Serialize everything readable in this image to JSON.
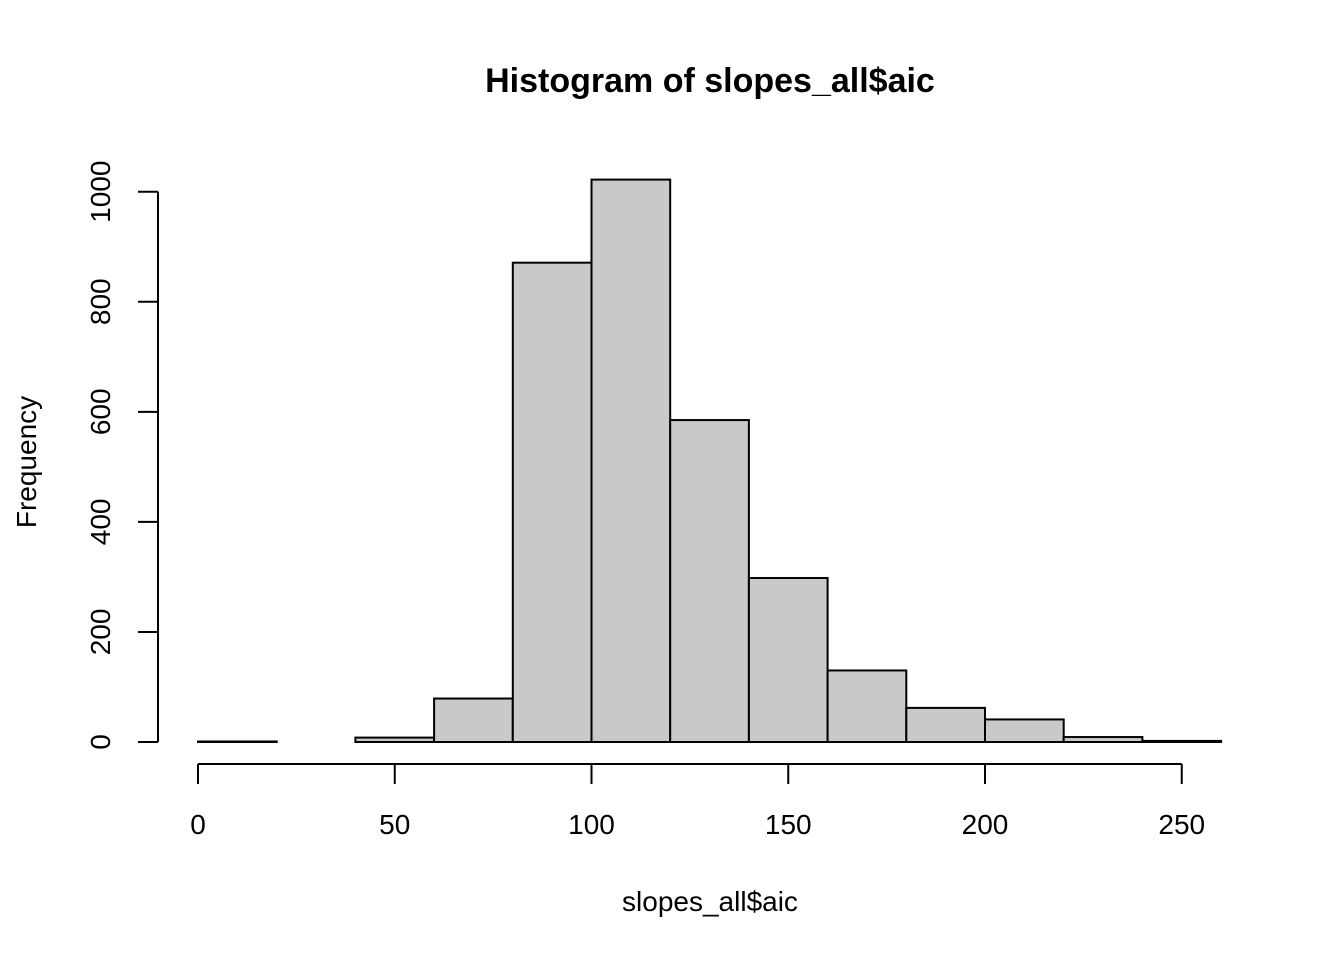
{
  "chart_data": {
    "type": "bar",
    "title": "Histogram of slopes_all$aic",
    "xlabel": "slopes_all$aic",
    "ylabel": "Frequency",
    "bins": [
      {
        "x0": 0,
        "x1": 20,
        "value": 1
      },
      {
        "x0": 20,
        "x1": 40,
        "value": 0
      },
      {
        "x0": 40,
        "x1": 60,
        "value": 8
      },
      {
        "x0": 60,
        "x1": 80,
        "value": 79
      },
      {
        "x0": 80,
        "x1": 100,
        "value": 871
      },
      {
        "x0": 100,
        "x1": 120,
        "value": 1022
      },
      {
        "x0": 120,
        "x1": 140,
        "value": 585
      },
      {
        "x0": 140,
        "x1": 160,
        "value": 298
      },
      {
        "x0": 160,
        "x1": 180,
        "value": 130
      },
      {
        "x0": 180,
        "x1": 200,
        "value": 62
      },
      {
        "x0": 200,
        "x1": 220,
        "value": 41
      },
      {
        "x0": 220,
        "x1": 240,
        "value": 9
      },
      {
        "x0": 240,
        "x1": 260,
        "value": 2
      }
    ],
    "xlim": [
      0,
      260
    ],
    "ylim": [
      0,
      1000
    ],
    "xticks": [
      0,
      50,
      100,
      150,
      200,
      250
    ],
    "yticks": [
      0,
      200,
      400,
      600,
      800,
      1000
    ],
    "xtick_labels": [
      "0",
      "50",
      "100",
      "150",
      "200",
      "250"
    ],
    "ytick_labels": [
      "0",
      "200",
      "400",
      "600",
      "800",
      "1000"
    ],
    "grid": false,
    "colors": {
      "bar_fill": "#c9c9c9",
      "bar_stroke": "#000000"
    }
  }
}
